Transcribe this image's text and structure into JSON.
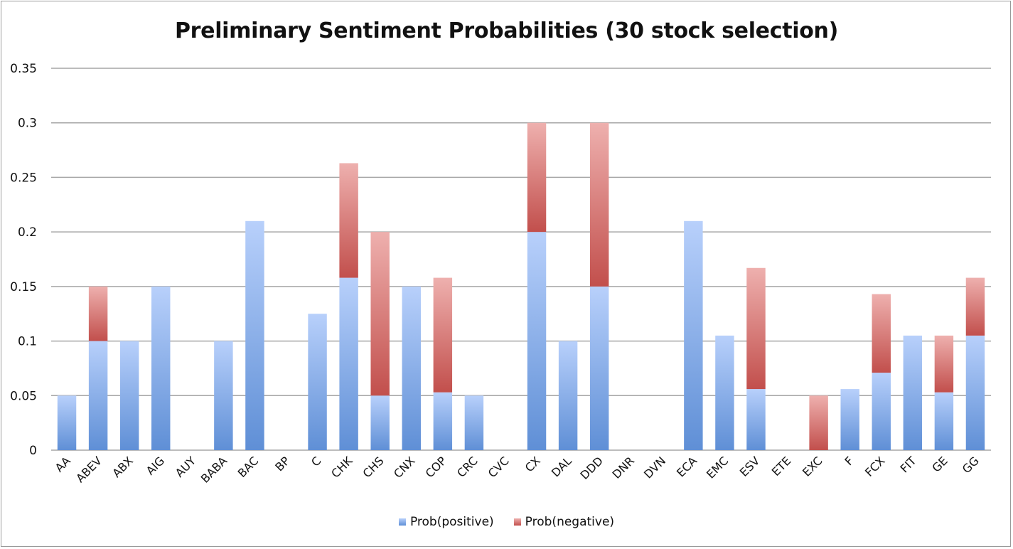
{
  "chart_data": {
    "type": "bar",
    "stacked": true,
    "title": "Preliminary Sentiment Probabilities (30 stock selection)",
    "xlabel": "",
    "ylabel": "",
    "ylim": [
      0,
      0.35
    ],
    "yticks": [
      "0",
      "0.05",
      "0.1",
      "0.15",
      "0.2",
      "0.25",
      "0.3",
      "0.35"
    ],
    "grid": true,
    "legend_position": "bottom",
    "categories": [
      "AA",
      "ABEV",
      "ABX",
      "AIG",
      "AUY",
      "BABA",
      "BAC",
      "BP",
      "C",
      "CHK",
      "CHS",
      "CNX",
      "COP",
      "CRC",
      "CVC",
      "CX",
      "DAL",
      "DDD",
      "DNR",
      "DVN",
      "ECA",
      "EMC",
      "ESV",
      "ETE",
      "EXC",
      "F",
      "FCX",
      "FIT",
      "GE",
      "GG"
    ],
    "series": [
      {
        "name": "Prob(positive)",
        "color": "#6f9fe0",
        "values": [
          0.05,
          0.1,
          0.1,
          0.15,
          0,
          0.1,
          0.21,
          0,
          0.125,
          0.158,
          0.05,
          0.15,
          0.053,
          0.05,
          0,
          0.2,
          0.1,
          0.15,
          0,
          0,
          0.21,
          0.105,
          0.056,
          0,
          0,
          0.056,
          0.071,
          0.105,
          0.053,
          0.105
        ]
      },
      {
        "name": "Prob(negative)",
        "color": "#d26a68",
        "values": [
          0,
          0.05,
          0,
          0,
          0,
          0,
          0,
          0,
          0,
          0.105,
          0.15,
          0,
          0.105,
          0,
          0,
          0.1,
          0,
          0.15,
          0,
          0,
          0,
          0,
          0.111,
          0,
          0.05,
          0,
          0.072,
          0,
          0.052,
          0.053
        ]
      }
    ]
  }
}
